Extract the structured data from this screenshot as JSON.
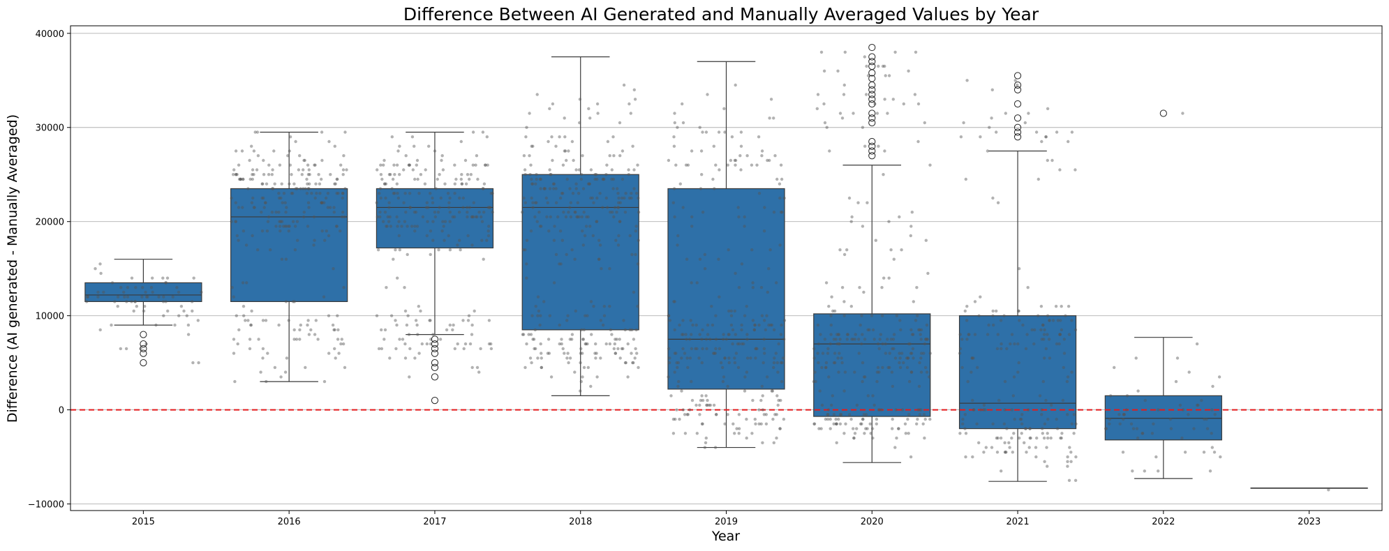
{
  "chart_data": {
    "type": "box",
    "title": "Difference Between AI Generated and Manually Averaged Values by Year",
    "xlabel": "Year",
    "ylabel": "Difference (AI generated - Manually Averaged)",
    "categories": [
      "2015",
      "2016",
      "2017",
      "2018",
      "2019",
      "2020",
      "2021",
      "2022",
      "2023"
    ],
    "ylim": [
      -10700,
      40800
    ],
    "yticks": [
      -10000,
      0,
      10000,
      20000,
      30000,
      40000
    ],
    "ytick_labels": [
      "−10000",
      "0",
      "10000",
      "20000",
      "30000",
      "40000"
    ],
    "grid": "y",
    "reference_line": {
      "y": 0,
      "color": "#e41a1c",
      "style": "dashed"
    },
    "box_color": "#2e70a8",
    "edge_color": "#3a3a3a",
    "outlier_style": "hollow-circle",
    "jitter_points_color": "#555555",
    "boxes": [
      {
        "year": "2015",
        "whisker_low": 9000,
        "q1": 11500,
        "median": 12200,
        "q3": 13500,
        "whisker_high": 16000,
        "outliers": [
          8000,
          7000,
          6500,
          6000,
          5000
        ],
        "jitter": {
          "n": 70,
          "min": 5000,
          "max": 16000,
          "clusters": [
            [
              12200,
              1400,
              50
            ],
            [
              7000,
              1500,
              12
            ],
            [
              14500,
              1200,
              8
            ]
          ]
        }
      },
      {
        "year": "2016",
        "whisker_low": 3000,
        "q1": 11500,
        "median": 20500,
        "q3": 23500,
        "whisker_high": 29500,
        "outliers": [],
        "jitter": {
          "n": 260,
          "min": 3000,
          "max": 29500,
          "clusters": [
            [
              22000,
              2800,
              150
            ],
            [
              8500,
              2500,
              70
            ],
            [
              26500,
              1800,
              40
            ]
          ]
        }
      },
      {
        "year": "2017",
        "whisker_low": 8000,
        "q1": 17200,
        "median": 21500,
        "q3": 23500,
        "whisker_high": 29500,
        "outliers": [
          7500,
          7000,
          6500,
          6000,
          5000,
          4500,
          3500,
          1000
        ],
        "jitter": {
          "n": 250,
          "min": 1000,
          "max": 29500,
          "clusters": [
            [
              21500,
              2500,
              160
            ],
            [
              7500,
              2000,
              60
            ],
            [
              26500,
              1800,
              30
            ]
          ]
        }
      },
      {
        "year": "2018",
        "whisker_low": 1500,
        "q1": 8500,
        "median": 21500,
        "q3": 25000,
        "whisker_high": 37500,
        "outliers": [],
        "jitter": {
          "n": 330,
          "min": 1500,
          "max": 37500,
          "clusters": [
            [
              22500,
              2500,
              150
            ],
            [
              6500,
              2200,
              110
            ],
            [
              30000,
              3500,
              40
            ],
            [
              15000,
              3000,
              30
            ]
          ]
        }
      },
      {
        "year": "2019",
        "whisker_low": -4000,
        "q1": 2200,
        "median": 7500,
        "q3": 23500,
        "whisker_high": 37000,
        "outliers": [],
        "jitter": {
          "n": 330,
          "min": -4000,
          "max": 37000,
          "clusters": [
            [
              6500,
              2500,
              140
            ],
            [
              -500,
              1500,
              70
            ],
            [
              27000,
              3500,
              60
            ],
            [
              17000,
              4000,
              40
            ]
          ]
        }
      },
      {
        "year": "2020",
        "whisker_low": -5600,
        "q1": -700,
        "median": 7000,
        "q3": 10200,
        "whisker_high": 26000,
        "outliers": [
          38500,
          37500,
          37000,
          36500,
          35800,
          35200,
          34500,
          34000,
          33500,
          33000,
          32500,
          31500,
          31000,
          30500,
          28500,
          28000,
          27500,
          27000
        ],
        "jitter": {
          "n": 300,
          "min": -5600,
          "max": 38500,
          "clusters": [
            [
              6500,
              2200,
              150
            ],
            [
              -1200,
              1000,
              80
            ],
            [
              33000,
              3000,
              40
            ],
            [
              18000,
              4000,
              30
            ]
          ]
        }
      },
      {
        "year": "2021",
        "whisker_low": -7600,
        "q1": -2000,
        "median": 700,
        "q3": 10000,
        "whisker_high": 27500,
        "outliers": [
          35500,
          34500,
          34000,
          32500,
          31000,
          30000,
          29500,
          29000
        ],
        "jitter": {
          "n": 220,
          "min": -7600,
          "max": 35500,
          "clusters": [
            [
              8500,
              2000,
              80
            ],
            [
              -2500,
              2000,
              90
            ],
            [
              30000,
              3000,
              30
            ],
            [
              4000,
              3000,
              20
            ]
          ]
        }
      },
      {
        "year": "2022",
        "whisker_low": -7300,
        "q1": -3200,
        "median": -900,
        "q3": 1500,
        "whisker_high": 7700,
        "outliers": [
          31500
        ],
        "jitter": {
          "n": 60,
          "min": -7300,
          "max": 31500,
          "clusters": [
            [
              -1000,
              2500,
              55
            ],
            [
              6000,
              1500,
              4
            ],
            [
              31500,
              0,
              1
            ]
          ]
        }
      },
      {
        "year": "2023",
        "whisker_low": -8300,
        "q1": -8300,
        "median": -8300,
        "q3": -8300,
        "whisker_high": -8300,
        "outliers": [],
        "jitter": {
          "n": 1,
          "min": -8300,
          "max": -8300,
          "clusters": [
            [
              -8300,
              0,
              1
            ]
          ]
        }
      }
    ]
  }
}
